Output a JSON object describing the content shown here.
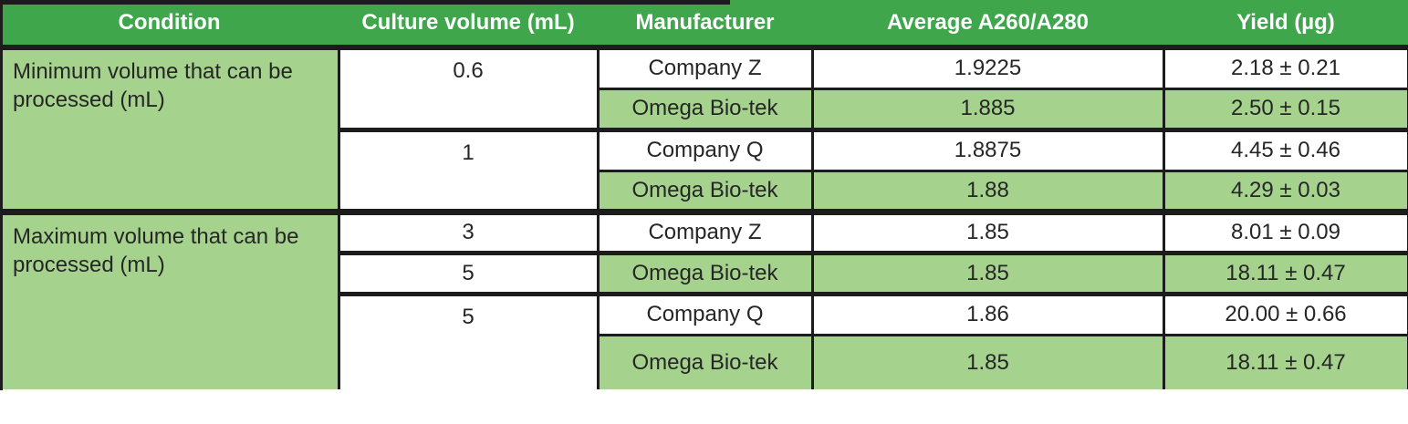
{
  "colors": {
    "header_bg": "#3FA64C",
    "header_text": "#FFFFFF",
    "highlight_row_bg": "#A5D38E",
    "white_row_bg": "#FFFFFF",
    "border": "#1C1C1C",
    "body_text": "#262626"
  },
  "table": {
    "columns": [
      {
        "label": "Condition"
      },
      {
        "label": "Culture volume (mL)"
      },
      {
        "label": "Manufacturer"
      },
      {
        "label": "Average A260/A280"
      },
      {
        "label": "Yield (µg)"
      }
    ],
    "sections": [
      {
        "condition": "Minimum volume that can be processed (mL)",
        "groups": [
          {
            "culture_volume": "0.6",
            "rows": [
              {
                "manufacturer": "Company Z",
                "average_a260_a280": "1.9225",
                "yield_ug": "2.18 ± 0.21",
                "highlighted": false
              },
              {
                "manufacturer": "Omega Bio-tek",
                "average_a260_a280": "1.885",
                "yield_ug": "2.50 ± 0.15",
                "highlighted": true
              }
            ]
          },
          {
            "culture_volume": "1",
            "rows": [
              {
                "manufacturer": "Company Q",
                "average_a260_a280": "1.8875",
                "yield_ug": "4.45 ± 0.46",
                "highlighted": false
              },
              {
                "manufacturer": "Omega Bio-tek",
                "average_a260_a280": "1.88",
                "yield_ug": "4.29 ± 0.03",
                "highlighted": true
              }
            ]
          }
        ]
      },
      {
        "condition": "Maximum volume that can be processed (mL)",
        "groups": [
          {
            "culture_volume": "3",
            "rows": [
              {
                "manufacturer": "Company Z",
                "average_a260_a280": "1.85",
                "yield_ug": "8.01 ± 0.09",
                "highlighted": false
              }
            ]
          },
          {
            "culture_volume": "5",
            "rows": [
              {
                "manufacturer": "Omega Bio-tek",
                "average_a260_a280": "1.85",
                "yield_ug": "18.11 ± 0.47",
                "highlighted": true
              }
            ]
          },
          {
            "culture_volume": "5",
            "rows": [
              {
                "manufacturer": "Company Q",
                "average_a260_a280": "1.86",
                "yield_ug": "20.00 ± 0.66",
                "highlighted": false
              },
              {
                "manufacturer": "Omega Bio-tek",
                "average_a260_a280": "1.85",
                "yield_ug": "18.11 ± 0.47",
                "highlighted": true
              }
            ]
          }
        ]
      }
    ]
  },
  "chart_data": {
    "type": "table",
    "columns": [
      "Condition",
      "Culture volume (mL)",
      "Manufacturer",
      "Average A260/A280",
      "Yield (µg)"
    ],
    "rows": [
      [
        "Minimum volume that can be processed (mL)",
        "0.6",
        "Company Z",
        "1.9225",
        "2.18 ± 0.21"
      ],
      [
        "Minimum volume that can be processed (mL)",
        "0.6",
        "Omega Bio-tek",
        "1.885",
        "2.50 ± 0.15"
      ],
      [
        "Minimum volume that can be processed (mL)",
        "1",
        "Company Q",
        "1.8875",
        "4.45 ± 0.46"
      ],
      [
        "Minimum volume that can be processed (mL)",
        "1",
        "Omega Bio-tek",
        "1.88",
        "4.29 ± 0.03"
      ],
      [
        "Maximum volume that can be processed (mL)",
        "3",
        "Company Z",
        "1.85",
        "8.01 ± 0.09"
      ],
      [
        "Maximum volume that can be processed (mL)",
        "5",
        "Omega Bio-tek",
        "1.85",
        "18.11 ± 0.47"
      ],
      [
        "Maximum volume that can be processed (mL)",
        "5",
        "Company Q",
        "1.86",
        "20.00 ± 0.66"
      ],
      [
        "Maximum volume that can be processed (mL)",
        "5",
        "Omega Bio-tek",
        "1.85",
        "18.11 ± 0.47"
      ]
    ],
    "layout_hints": {
      "header_fill": "#3FA64C",
      "alternating_highlight": "Omega Bio-tek rows filled #A5D38E",
      "merged_cells": "Condition spans 4 rows per section; culture volume 0.6, 1 and last 5 each span 2 rows"
    }
  }
}
